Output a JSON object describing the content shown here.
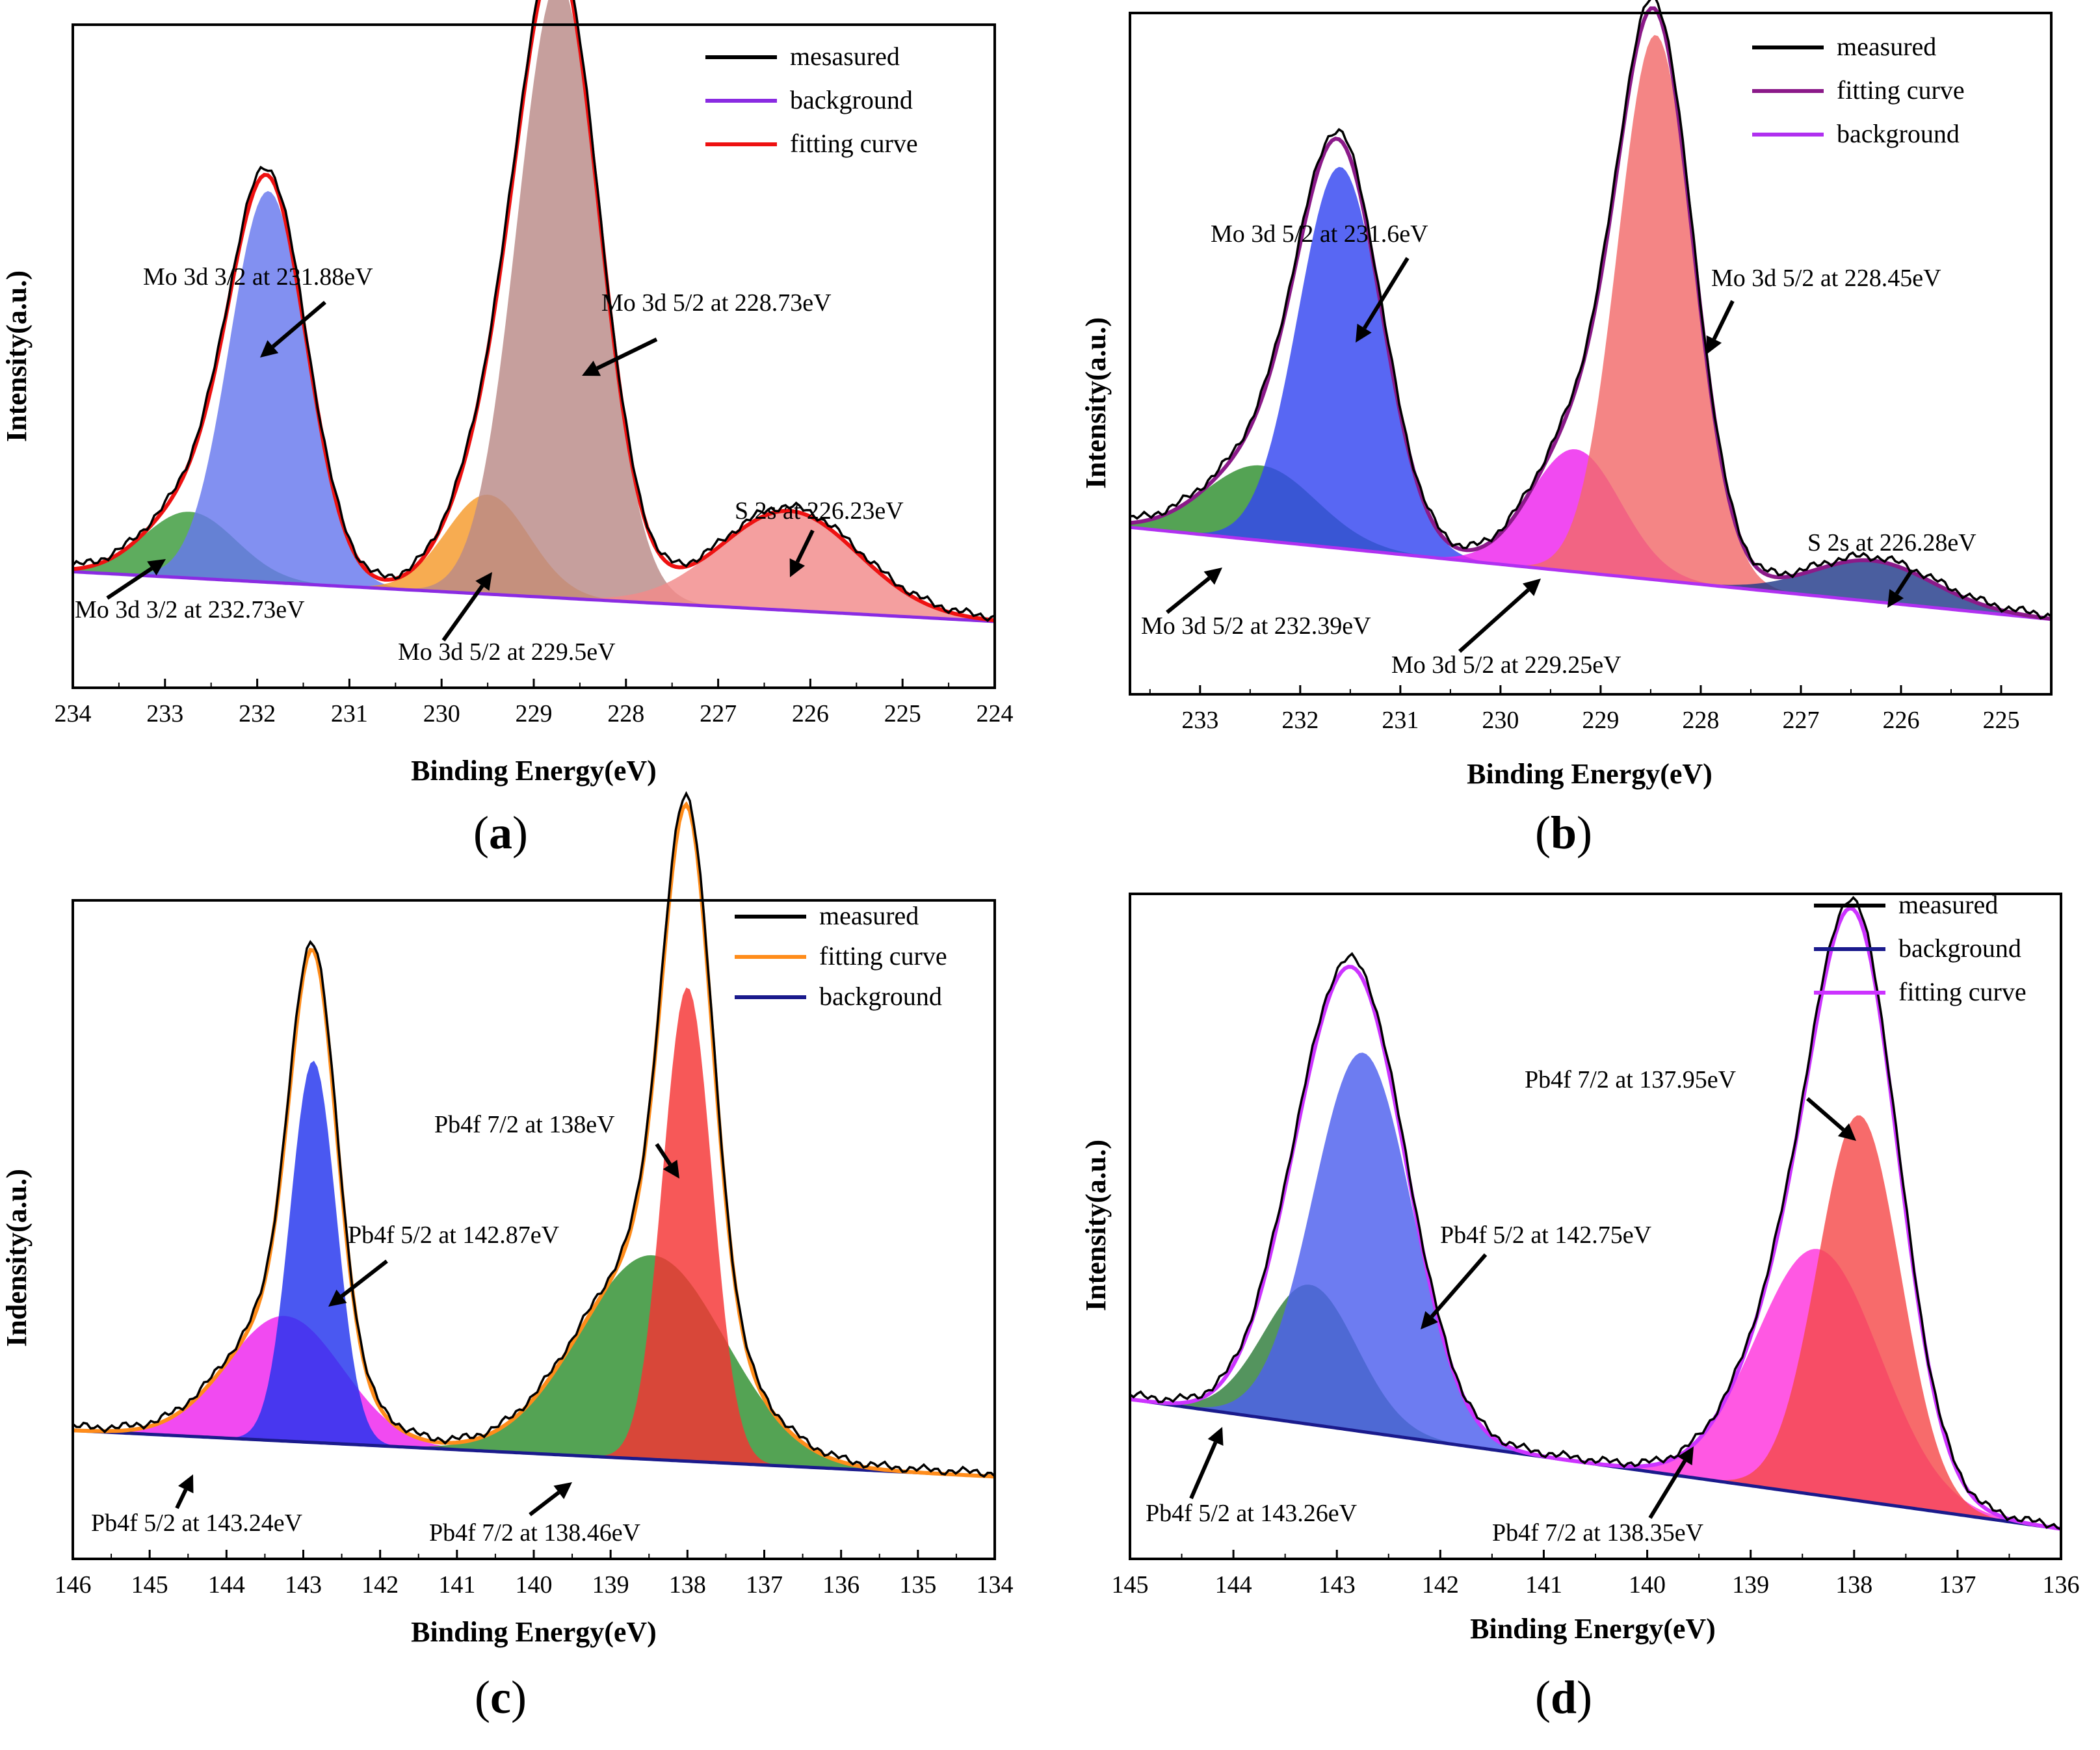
{
  "figure": {
    "panel_letters": [
      "a",
      "b",
      "c",
      "d"
    ]
  },
  "chart_data": [
    {
      "type": "line",
      "panel": "a",
      "xlabel": "Binding Energy(eV)",
      "ylabel": "Intensity(a.u.)",
      "xlim": [
        234,
        224
      ],
      "ylim": [
        0,
        1
      ],
      "x_ticks": [
        234,
        233,
        232,
        231,
        230,
        229,
        228,
        227,
        226,
        225,
        224
      ],
      "legend": [
        {
          "label": "mesasured",
          "color": "#000000"
        },
        {
          "label": "background",
          "color": "#8a2be2"
        },
        {
          "label": "fitting curve",
          "color": "#ee1111"
        }
      ],
      "baseline": {
        "left": 0.175,
        "right": 0.1
      },
      "peaks": [
        {
          "center": 232.73,
          "height": 0.1,
          "width": 0.5,
          "color": "#3a9a3a"
        },
        {
          "center": 231.88,
          "height": 0.59,
          "width": 0.42,
          "color": "#6678ee"
        },
        {
          "center": 229.5,
          "height": 0.15,
          "width": 0.45,
          "color": "#f59a2b"
        },
        {
          "center": 228.73,
          "height": 0.93,
          "width": 0.45,
          "color": "#b98a88"
        },
        {
          "center": 226.23,
          "height": 0.15,
          "width": 0.75,
          "color": "#f28a8a"
        }
      ],
      "annotations": [
        {
          "text": "Mo 3d 3/2 at 231.88eV"
        },
        {
          "text": "Mo 3d 5/2 at 228.73eV"
        },
        {
          "text": "S 2s at 226.23eV"
        },
        {
          "text": "Mo 3d 3/2 at 232.73eV"
        },
        {
          "text": "Mo 3d 5/2 at 229.5eV"
        }
      ]
    },
    {
      "type": "line",
      "panel": "b",
      "xlabel": "Binding Energy(eV)",
      "ylabel": "Intensity(a.u.)",
      "xlim": [
        233.7,
        224.5
      ],
      "ylim": [
        0,
        1
      ],
      "x_ticks": [
        233,
        232,
        231,
        230,
        229,
        228,
        227,
        226,
        225
      ],
      "legend": [
        {
          "label": "measured",
          "color": "#000000"
        },
        {
          "label": "fitting curve",
          "color": "#8b1a89"
        },
        {
          "label": "background",
          "color": "#b030f0"
        }
      ],
      "baseline": {
        "left": 0.245,
        "right": 0.11
      },
      "peaks": [
        {
          "center": 232.39,
          "height": 0.11,
          "width": 0.55,
          "color": "#2e8f2e"
        },
        {
          "center": 231.6,
          "height": 0.56,
          "width": 0.42,
          "color": "#3346f0"
        },
        {
          "center": 229.25,
          "height": 0.18,
          "width": 0.45,
          "color": "#ee22ee"
        },
        {
          "center": 228.45,
          "height": 0.8,
          "width": 0.38,
          "color": "#f26a6a"
        },
        {
          "center": 226.28,
          "height": 0.06,
          "width": 0.6,
          "color": "#223a8a"
        }
      ],
      "annotations": [
        {
          "text": "Mo 3d 5/2 at 231.6eV"
        },
        {
          "text": "Mo 3d 5/2 at 228.45eV"
        },
        {
          "text": "S 2s at 226.28eV"
        },
        {
          "text": "Mo 3d 5/2 at 232.39eV"
        },
        {
          "text": "Mo 3d 5/2 at 229.25eV"
        }
      ]
    },
    {
      "type": "line",
      "panel": "c",
      "xlabel": "Binding Energy(eV)",
      "ylabel": "Indensity(a.u.)",
      "xlim": [
        146,
        134
      ],
      "ylim": [
        0,
        1
      ],
      "x_ticks": [
        146,
        145,
        144,
        143,
        142,
        141,
        140,
        139,
        138,
        137,
        136,
        135,
        134
      ],
      "legend": [
        {
          "label": "measured",
          "color": "#000000"
        },
        {
          "label": "fitting curve",
          "color": "#ff8c1a"
        },
        {
          "label": "background",
          "color": "#1a1a8c"
        }
      ],
      "baseline": {
        "left": 0.195,
        "right": 0.125
      },
      "peaks": [
        {
          "center": 143.24,
          "height": 0.19,
          "width": 0.75,
          "color": "#ee22ee"
        },
        {
          "center": 142.87,
          "height": 0.58,
          "width": 0.3,
          "color": "#2233ee"
        },
        {
          "center": 138.46,
          "height": 0.31,
          "width": 0.95,
          "color": "#2e8f2e"
        },
        {
          "center": 138.0,
          "height": 0.72,
          "width": 0.32,
          "color": "#f53333"
        }
      ],
      "annotations": [
        {
          "text": "Pb4f 7/2 at 138eV"
        },
        {
          "text": "Pb4f 5/2 at 142.87eV"
        },
        {
          "text": "Pb4f 5/2 at 143.24eV"
        },
        {
          "text": "Pb4f 7/2 at 138.46eV"
        }
      ]
    },
    {
      "type": "line",
      "panel": "d",
      "xlabel": "Binding Energy(eV)",
      "ylabel": "Intensity(a.u.)",
      "xlim": [
        145,
        136
      ],
      "ylim": [
        0,
        1
      ],
      "x_ticks": [
        145,
        144,
        143,
        142,
        141,
        140,
        139,
        138,
        137,
        136
      ],
      "legend": [
        {
          "label": "measured",
          "color": "#000000"
        },
        {
          "label": "background",
          "color": "#1a1a8c"
        },
        {
          "label": "fitting curve",
          "color": "#cc33ff"
        }
      ],
      "baseline": {
        "left": 0.24,
        "right": 0.045
      },
      "peaks": [
        {
          "center": 143.26,
          "height": 0.21,
          "width": 0.45,
          "color": "#2e7d3a"
        },
        {
          "center": 142.75,
          "height": 0.57,
          "width": 0.48,
          "color": "#4d5fee"
        },
        {
          "center": 138.35,
          "height": 0.37,
          "width": 0.6,
          "color": "#ff33dd"
        },
        {
          "center": 137.95,
          "height": 0.58,
          "width": 0.4,
          "color": "#f54a4a"
        }
      ],
      "annotations": [
        {
          "text": "Pb4f 7/2 at 137.95eV"
        },
        {
          "text": "Pb4f 5/2 at 142.75eV"
        },
        {
          "text": "Pb4f 5/2 at 143.26eV"
        },
        {
          "text": "Pb4f 7/2 at 138.35eV"
        }
      ]
    }
  ]
}
